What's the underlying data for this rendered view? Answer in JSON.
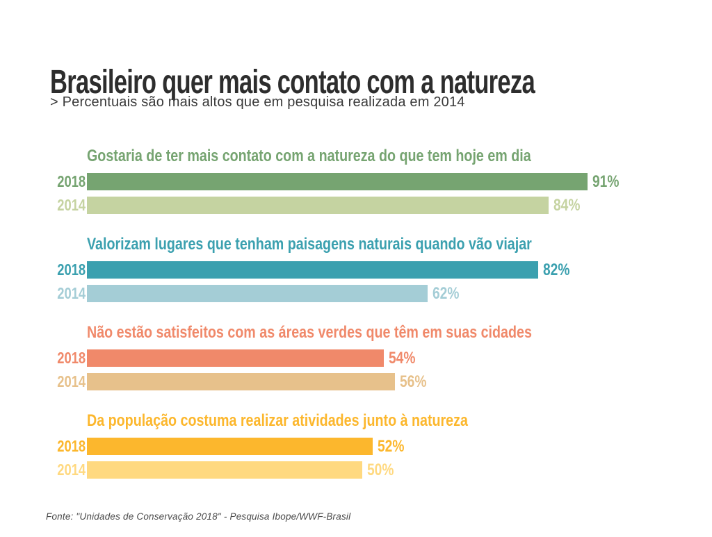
{
  "title": "Brasileiro quer mais contato com a natureza",
  "subtitle": "> Percentuais são mais altos que em pesquisa realizada em 2014",
  "source": "Fonte: \"Unidades de Conservação 2018\" - Pesquisa Ibope/WWF-Brasil",
  "colors": {
    "title_text": "#2d2d2d",
    "subtitle_text": "#3a3a3a",
    "source_text": "#4a4a4a",
    "green_2018": "#76a471",
    "green_2014": "#c5d3a1",
    "teal_2018": "#3ba0af",
    "teal_2014": "#a4cdd6",
    "salmon_2018": "#f0896a",
    "salmon_2014": "#e7c18b",
    "gold_2018": "#fcb72d",
    "gold_2014": "#ffd980"
  },
  "chart_data": {
    "type": "bar",
    "orientation": "horizontal",
    "title": "Brasileiro quer mais contato com a natureza",
    "subtitle": "> Percentuais são mais altos que em pesquisa realizada em 2014",
    "xlim": [
      0,
      100
    ],
    "unit": "%",
    "grid": false,
    "legend_position": "none",
    "categories": [
      "2018",
      "2014"
    ],
    "groups": [
      {
        "heading": "Gostaria de ter mais contato com a natureza do que tem hoje em dia",
        "rows": [
          {
            "year": "2018",
            "value": 91,
            "label": "91%",
            "color": "#76a471"
          },
          {
            "year": "2014",
            "value": 84,
            "label": "84%",
            "color": "#c5d3a1"
          }
        ]
      },
      {
        "heading": "Valorizam lugares que tenham paisagens naturais quando vão viajar",
        "rows": [
          {
            "year": "2018",
            "value": 82,
            "label": "82%",
            "color": "#3ba0af"
          },
          {
            "year": "2014",
            "value": 62,
            "label": "62%",
            "color": "#a4cdd6"
          }
        ]
      },
      {
        "heading": "Não estão satisfeitos com as áreas verdes que têm em suas cidades",
        "rows": [
          {
            "year": "2018",
            "value": 54,
            "label": "54%",
            "color": "#f0896a"
          },
          {
            "year": "2014",
            "value": 56,
            "label": "56%",
            "color": "#e7c18b"
          }
        ]
      },
      {
        "heading": "Da população costuma realizar atividades junto à natureza",
        "rows": [
          {
            "year": "2018",
            "value": 52,
            "label": "52%",
            "color": "#fcb72d"
          },
          {
            "year": "2014",
            "value": 50,
            "label": "50%",
            "color": "#ffd980"
          }
        ]
      }
    ]
  }
}
